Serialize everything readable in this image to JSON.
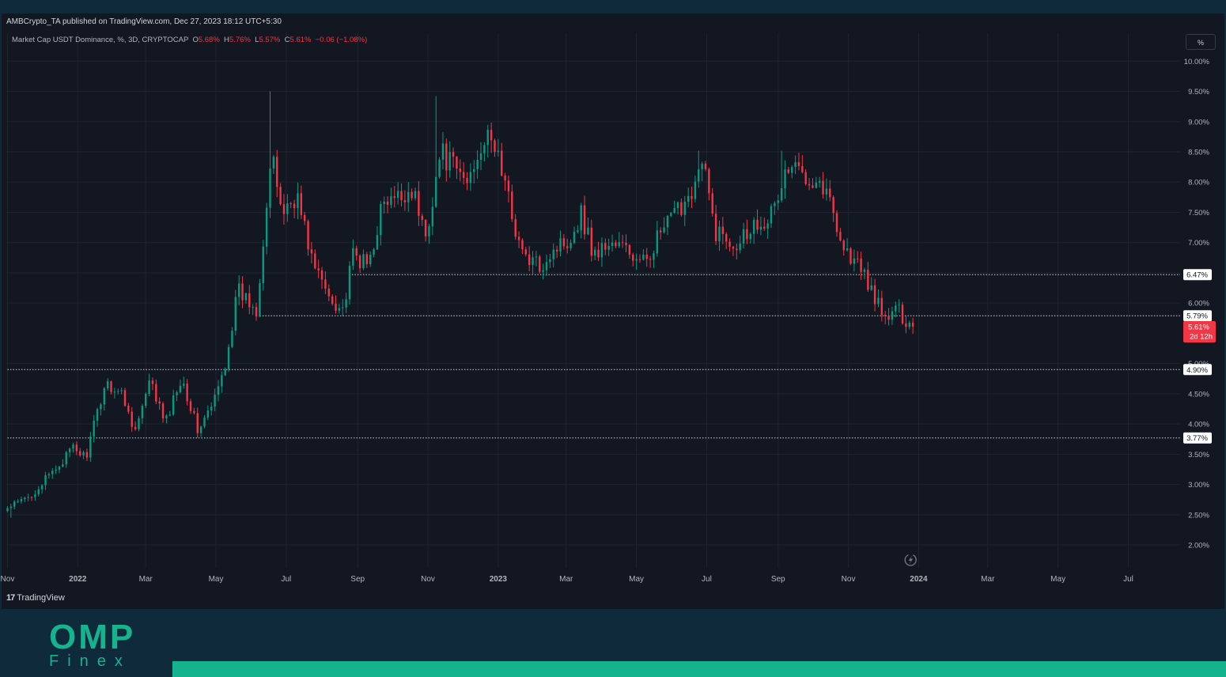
{
  "header": {
    "publish_line": "AMBCrypto_TA published on TradingView.com, Dec 27, 2023 18:12 UTC+5:30"
  },
  "legend": {
    "symbol": "Market Cap USDT Dominance, %, 3D, CRYPTOCAP",
    "open_label": "O",
    "open": "5.68%",
    "high_label": "H",
    "high": "5.76%",
    "low_label": "L",
    "low": "5.57%",
    "close_label": "C",
    "close": "5.61%",
    "change": "−0.06 (−1.08%)"
  },
  "scale_button": "%",
  "footer": {
    "brand": "TradingView",
    "brand_mark": "17"
  },
  "watermark": {
    "line1": "OMP",
    "line2": "Finex"
  },
  "colors": {
    "up": "#089981",
    "down": "#f23645",
    "background": "#131722",
    "brand": "#14b38e"
  },
  "chart_data": {
    "type": "candlestick",
    "title": "Market Cap USDT Dominance, %, 3D, CRYPTOCAP",
    "y_ticks": [
      "2.00%",
      "2.50%",
      "3.00%",
      "3.50%",
      "4.00%",
      "4.50%",
      "5.00%",
      "6.00%",
      "6.50%",
      "7.00%",
      "7.50%",
      "8.00%",
      "8.50%",
      "9.00%",
      "9.50%",
      "10.00%"
    ],
    "x_ticks": [
      "Nov",
      "2022",
      "Mar",
      "May",
      "Jul",
      "Sep",
      "Nov",
      "2023",
      "Mar",
      "May",
      "Jul",
      "Sep",
      "Nov",
      "2024",
      "Mar",
      "May",
      "Jul"
    ],
    "ylim": [
      1.7,
      10.2
    ],
    "horizontal_levels": [
      {
        "value": 6.47,
        "label": "6.47%",
        "from": "2022-08-27"
      },
      {
        "value": 5.79,
        "label": "5.79%",
        "from": "2022-06-08"
      },
      {
        "value": 4.9,
        "label": "4.90%",
        "from": "2021-11-01"
      },
      {
        "value": 3.77,
        "label": "3.77%",
        "from": "2021-11-01"
      }
    ],
    "current_price": {
      "label": "5.61%",
      "countdown": "2d 12h",
      "value": 5.61
    },
    "path": [
      [
        "2021-11-01",
        2.6
      ],
      [
        "2021-11-20",
        2.8
      ],
      [
        "2021-12-10",
        3.2
      ],
      [
        "2021-12-28",
        3.6
      ],
      [
        "2022-01-08",
        3.45
      ],
      [
        "2022-01-25",
        4.7
      ],
      [
        "2022-02-08",
        4.5
      ],
      [
        "2022-02-20",
        3.9
      ],
      [
        "2022-03-05",
        4.7
      ],
      [
        "2022-03-18",
        4.0
      ],
      [
        "2022-04-01",
        4.8
      ],
      [
        "2022-04-15",
        3.9
      ],
      [
        "2022-04-28",
        4.3
      ],
      [
        "2022-05-08",
        4.9
      ],
      [
        "2022-05-20",
        6.2
      ],
      [
        "2022-06-05",
        5.9
      ],
      [
        "2022-06-18",
        8.4
      ],
      [
        "2022-06-28",
        7.5
      ],
      [
        "2022-07-10",
        7.8
      ],
      [
        "2022-07-25",
        6.6
      ],
      [
        "2022-08-08",
        6.1
      ],
      [
        "2022-08-20",
        5.9
      ],
      [
        "2022-08-28",
        6.8
      ],
      [
        "2022-09-10",
        6.6
      ],
      [
        "2022-09-22",
        7.6
      ],
      [
        "2022-10-05",
        7.7
      ],
      [
        "2022-10-18",
        7.9
      ],
      [
        "2022-10-30",
        7.1
      ],
      [
        "2022-11-12",
        8.5
      ],
      [
        "2022-11-25",
        8.2
      ],
      [
        "2022-12-05",
        8.0
      ],
      [
        "2022-12-18",
        8.7
      ],
      [
        "2022-12-30",
        8.6
      ],
      [
        "2023-01-10",
        7.7
      ],
      [
        "2023-01-22",
        6.8
      ],
      [
        "2023-02-05",
        6.6
      ],
      [
        "2023-02-18",
        6.9
      ],
      [
        "2023-03-05",
        7.1
      ],
      [
        "2023-03-14",
        7.5
      ],
      [
        "2023-03-25",
        6.8
      ],
      [
        "2023-04-08",
        7.0
      ],
      [
        "2023-04-22",
        6.9
      ],
      [
        "2023-05-05",
        6.6
      ],
      [
        "2023-05-20",
        7.1
      ],
      [
        "2023-06-05",
        7.5
      ],
      [
        "2023-06-18",
        7.9
      ],
      [
        "2023-06-28",
        8.3
      ],
      [
        "2023-07-08",
        7.2
      ],
      [
        "2023-07-25",
        7.0
      ],
      [
        "2023-08-10",
        7.3
      ],
      [
        "2023-08-28",
        7.5
      ],
      [
        "2023-09-08",
        8.2
      ],
      [
        "2023-09-22",
        8.2
      ],
      [
        "2023-10-08",
        8.0
      ],
      [
        "2023-10-18",
        7.6
      ],
      [
        "2023-10-28",
        6.9
      ],
      [
        "2023-11-10",
        6.6
      ],
      [
        "2023-11-22",
        6.2
      ],
      [
        "2023-12-02",
        5.7
      ],
      [
        "2023-12-12",
        5.9
      ],
      [
        "2023-12-27",
        5.61
      ]
    ],
    "extremes": [
      {
        "date": "2021-11-04",
        "value": 2.45
      },
      {
        "date": "2022-06-17",
        "value": 9.5
      },
      {
        "date": "2022-11-09",
        "value": 9.42
      },
      {
        "date": "2023-06-24",
        "value": 8.52
      },
      {
        "date": "2023-09-05",
        "value": 8.52
      },
      {
        "date": "2023-12-22",
        "value": 5.5
      }
    ]
  }
}
